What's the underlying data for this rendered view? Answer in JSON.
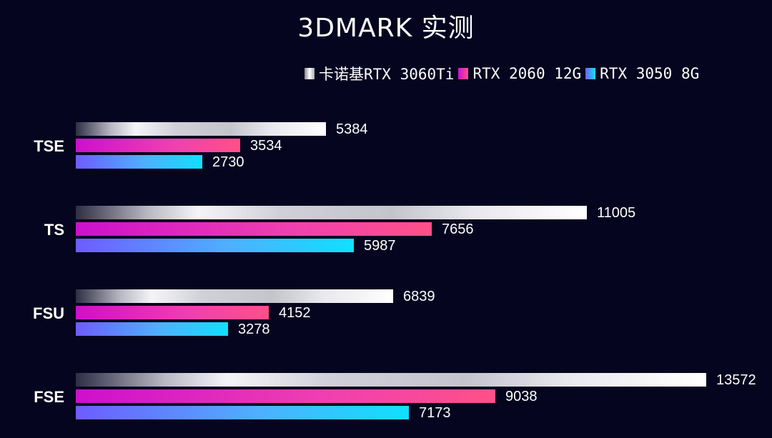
{
  "title": "3DMARK 实测",
  "legend": [
    "卡诺基RTX 3060Ti",
    "RTX 2060 12G",
    "RTX 3050 8G"
  ],
  "colors": {
    "background": "#05051f",
    "series0": "#ffffff",
    "series1": "#e030c0",
    "series2": "#30c0ff"
  },
  "chart_data": {
    "type": "bar",
    "orientation": "horizontal",
    "title": "3DMARK 实测",
    "categories": [
      "TSE",
      "TS",
      "FSU",
      "FSE"
    ],
    "series": [
      {
        "name": "卡诺基RTX 3060Ti",
        "values": [
          5384,
          11005,
          6839,
          13572
        ]
      },
      {
        "name": "RTX 2060 12G",
        "values": [
          3534,
          7656,
          4152,
          9038
        ]
      },
      {
        "name": "RTX 3050 8G",
        "values": [
          2730,
          5987,
          3278,
          7173
        ]
      }
    ],
    "xlabel": "",
    "ylabel": "",
    "grid": false,
    "legend_position": "top-right",
    "data_labels": true
  },
  "groups": [
    {
      "label": "TSE",
      "values": [
        "5384",
        "3534",
        "2730"
      ]
    },
    {
      "label": "TS",
      "values": [
        "11005",
        "7656",
        "5987"
      ]
    },
    {
      "label": "FSU",
      "values": [
        "6839",
        "4152",
        "3278"
      ]
    },
    {
      "label": "FSE",
      "values": [
        "13572",
        "9038",
        "7173"
      ]
    }
  ]
}
